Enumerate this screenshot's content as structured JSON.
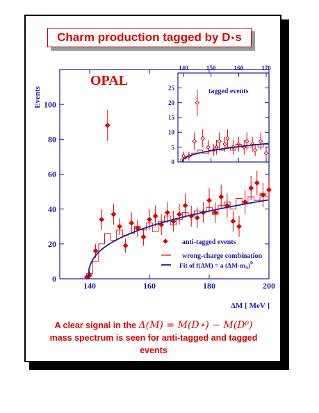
{
  "slide": {
    "title_main": "Charm production tagged by D",
    "title_sup": "⋆",
    "title_tail": "s",
    "caption_line1_pre": "A clear signal in the ",
    "caption_math": "Δ(M) = M(D⋆) − M(D⁰)",
    "caption_line2": "mass spectrum is seen for anti-tagged and tagged",
    "caption_line3": "events"
  },
  "colors": {
    "axis": "#1a1aa0",
    "data": "#e00000",
    "fit": "#1a1aa0",
    "title": "#e00000"
  },
  "chart_data": [
    {
      "type": "scatter",
      "label_main": "OPAL",
      "xlabel": "ΔM [ MeV ]",
      "ylabel": "Events",
      "xlim": [
        130,
        200
      ],
      "ylim": [
        0,
        120
      ],
      "xticks": [
        140,
        160,
        180,
        200
      ],
      "yticks": [
        0,
        20,
        40,
        60,
        80,
        100
      ],
      "legend": {
        "position": "bottom-right",
        "entries": [
          "anti-tagged events",
          "wrong-charge combination",
          "Fit of f(ΔM) = a (ΔM-m",
          "π",
          ")",
          "b"
        ]
      },
      "series": [
        {
          "name": "anti-tagged events",
          "style": "filled-diamond-with-errors",
          "x": [
            139,
            140,
            142,
            144,
            146,
            148,
            150,
            152,
            154,
            156,
            158,
            160,
            162,
            164,
            166,
            168,
            170,
            172,
            174,
            176,
            178,
            180,
            182,
            184,
            186,
            188,
            190,
            192,
            194,
            196,
            198,
            200
          ],
          "y": [
            1,
            2,
            16,
            34,
            88,
            37,
            30,
            19,
            32,
            29,
            24,
            34,
            36,
            31,
            38,
            33,
            37,
            42,
            36,
            35,
            38,
            45,
            38,
            47,
            42,
            33,
            30,
            44,
            52,
            55,
            48,
            51
          ],
          "err": [
            1,
            2,
            4,
            6,
            9,
            6,
            5,
            4,
            6,
            5,
            5,
            6,
            6,
            6,
            6,
            6,
            6,
            7,
            6,
            6,
            6,
            7,
            6,
            7,
            7,
            6,
            6,
            7,
            7,
            7,
            7,
            7
          ]
        },
        {
          "name": "wrong-charge combination",
          "style": "histogram",
          "edges": [
            139,
            141,
            143,
            145,
            147,
            149,
            151,
            153,
            155,
            157,
            159,
            161,
            163,
            165,
            167,
            169,
            171,
            173,
            175,
            177,
            179,
            181,
            183,
            185,
            187,
            189,
            191,
            193,
            195,
            197,
            199,
            201
          ],
          "values": [
            3,
            10,
            20,
            26,
            22,
            28,
            25,
            26,
            30,
            28,
            32,
            27,
            33,
            36,
            31,
            34,
            38,
            36,
            39,
            38,
            41,
            37,
            42,
            44,
            40,
            46,
            43,
            47,
            45,
            49,
            47
          ]
        },
        {
          "name": "Fit of f(ΔM) = a (ΔM-mπ)b",
          "style": "curve",
          "a": 9.53,
          "m_pi": 139.57,
          "b": 0.38
        }
      ]
    },
    {
      "type": "scatter",
      "label": "tagged events",
      "xlim": [
        138,
        171
      ],
      "ylim": [
        0,
        30
      ],
      "xticks": [
        140,
        150,
        160,
        170
      ],
      "yticks": [
        0,
        5,
        10,
        15,
        20,
        25
      ],
      "series": [
        {
          "name": "tagged events",
          "style": "open-diamond-with-errors",
          "x": [
            140,
            142,
            144,
            145,
            147,
            149,
            151,
            152,
            153,
            155,
            156,
            158,
            160,
            162,
            163,
            165,
            166,
            168,
            170
          ],
          "y": [
            2,
            2,
            7,
            20,
            8,
            5,
            4,
            5,
            7,
            6,
            8,
            5,
            6,
            5,
            7,
            6,
            4,
            7,
            3
          ],
          "err": [
            1.5,
            1.5,
            3,
            4.5,
            3,
            2.5,
            2,
            2.5,
            3,
            2.5,
            3,
            2.5,
            2.5,
            2.5,
            3,
            2.5,
            2,
            3,
            2
          ]
        },
        {
          "name": "wrong-charge combination",
          "style": "histogram",
          "edges": [
            139,
            141,
            143,
            145,
            147,
            149,
            151,
            153,
            155,
            157,
            159,
            161,
            163,
            165,
            167,
            169,
            171
          ],
          "values": [
            1,
            2,
            3,
            4,
            3,
            4,
            5,
            4,
            5,
            4,
            6,
            5,
            5,
            6,
            5,
            6
          ]
        },
        {
          "name": "fit",
          "style": "curve",
          "a": 1.33,
          "m_pi": 139.57,
          "b": 0.45
        }
      ]
    }
  ]
}
